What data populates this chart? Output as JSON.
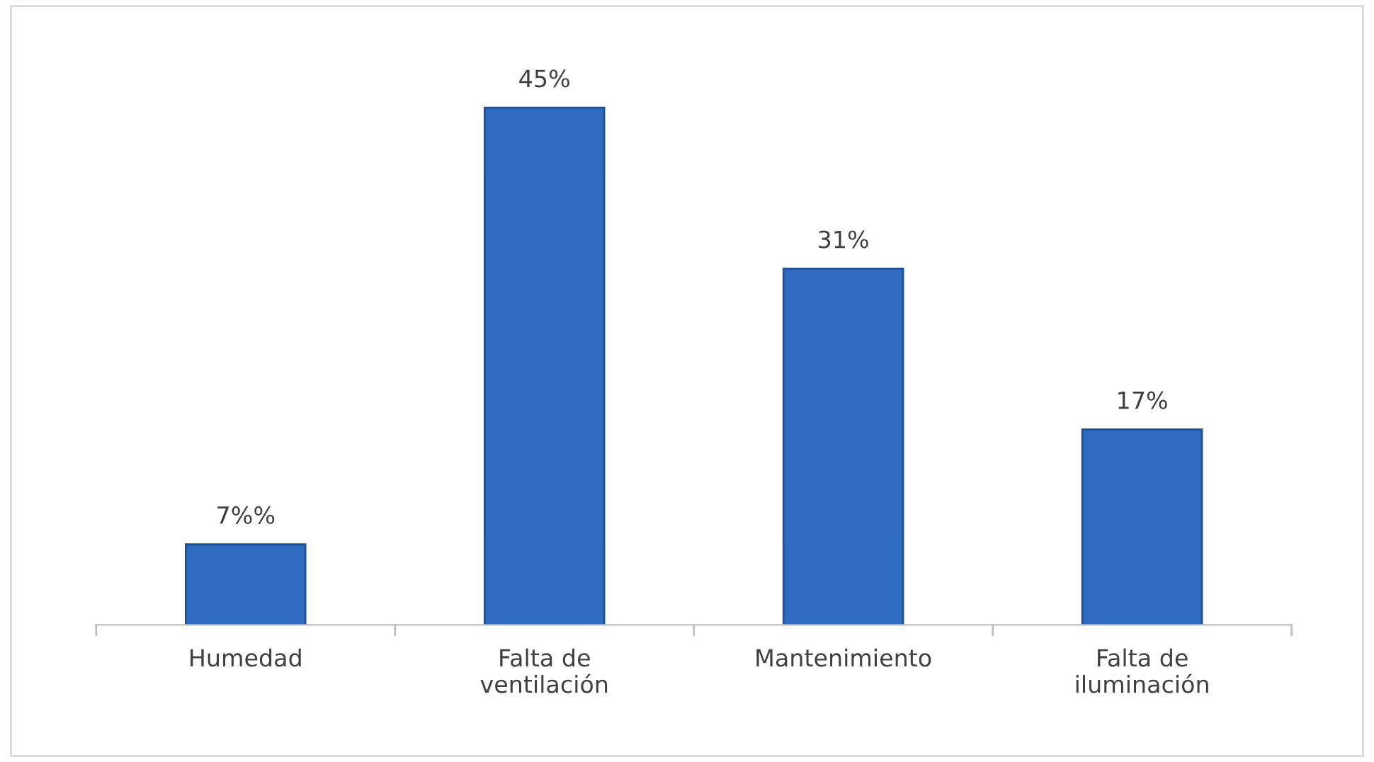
{
  "chart_data": {
    "type": "bar",
    "categories": [
      "Humedad",
      "Falta de\nventilación",
      "Mantenimiento",
      "Falta de\niluminación"
    ],
    "values": [
      7,
      45,
      31,
      17
    ],
    "value_labels": [
      "7%%",
      "45%",
      "31%",
      "17%"
    ],
    "color": "#2f6bc1",
    "grid": false,
    "legend": false
  }
}
